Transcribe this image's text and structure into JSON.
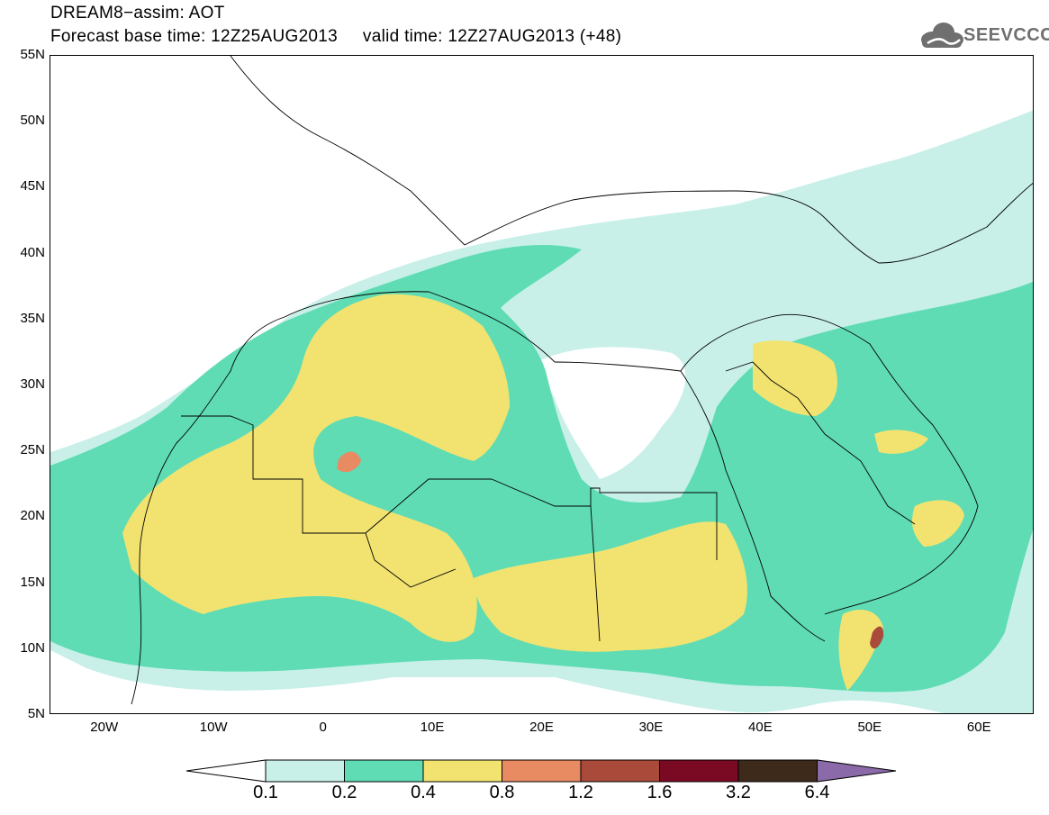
{
  "header": {
    "line1": "DREAM8−assim: AOT",
    "line2": "Forecast base time: 12Z25AUG2013     valid time: 12Z27AUG2013 (+48)"
  },
  "logo": {
    "text": "SEEVCCC",
    "icon": "cloud-logo-icon",
    "color": "#6f6f6f"
  },
  "map": {
    "projection": "cylindrical",
    "lon_range": [
      -25,
      65
    ],
    "lat_range": [
      5,
      55
    ],
    "lat_labels": [
      "55N",
      "50N",
      "45N",
      "40N",
      "35N",
      "30N",
      "25N",
      "20N",
      "15N",
      "10N",
      "5N"
    ],
    "lon_labels": [
      "20W",
      "10W",
      "0",
      "10E",
      "20E",
      "30E",
      "40E",
      "50E",
      "60E"
    ],
    "field": "Aerosol Optical Thickness (dust)"
  },
  "colorbar": {
    "labels": [
      "0.1",
      "0.2",
      "0.4",
      "0.8",
      "1.2",
      "1.6",
      "3.2",
      "6.4"
    ],
    "colors": [
      "#c8f0e9",
      "#5fdcb4",
      "#f2e370",
      "#e88a62",
      "#a94a3a",
      "#7a0a24",
      "#3d2a1a",
      "#8a6aa8"
    ]
  }
}
